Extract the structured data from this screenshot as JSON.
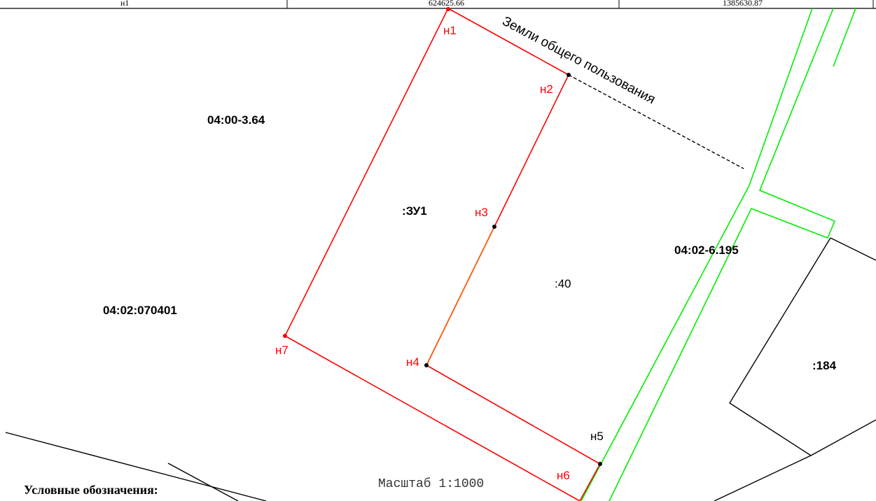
{
  "coords_table": {
    "row": [
      "н1",
      "624625.66",
      "1385630.87"
    ]
  },
  "labels": {
    "land_common": "Земли общего пользования",
    "quarter_a": "04:00-3.64",
    "quarter_b": "04:02:070401",
    "quarter_c": "04:02-6.195",
    "parcel_new": ":ЗУ1",
    "parcel_40": ":40",
    "parcel_184": ":184"
  },
  "points": [
    "н1",
    "н2",
    "н3",
    "н4",
    "н5",
    "н6",
    "н7"
  ],
  "scale": "Масштаб 1:1000",
  "legend_title": "Условные обозначения:",
  "colors": {
    "new_boundary": "#ff0000",
    "existing_boundary": "#000000",
    "green_boundary": "#00ee00",
    "point_label": "#ff0000"
  }
}
